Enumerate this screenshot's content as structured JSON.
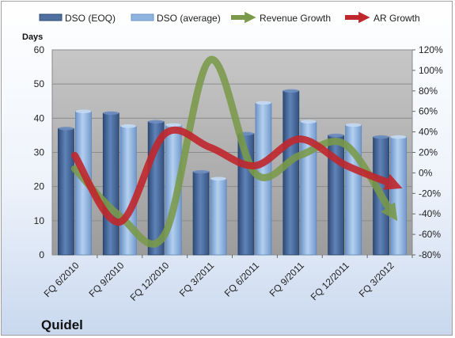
{
  "chart_data": {
    "type": "bar",
    "company": "Quidel",
    "categories": [
      "FQ 6/2010",
      "FQ 9/2010",
      "FQ 12/2010",
      "FQ 3/2011",
      "FQ 6/2011",
      "FQ 9/2011",
      "FQ 12/2011",
      "FQ 3/2012"
    ],
    "y_left": {
      "label": "Days",
      "ylim": [
        0,
        60
      ],
      "ticks": [
        "0",
        "10",
        "20",
        "30",
        "40",
        "50",
        "60"
      ]
    },
    "y_right": {
      "ylim": [
        -80,
        120
      ],
      "ticks": [
        "-80%",
        "-60%",
        "-40%",
        "-20%",
        "0%",
        "20%",
        "40%",
        "60%",
        "80%",
        "100%",
        "120%"
      ]
    },
    "bar_series": [
      {
        "name": "DSO (EOQ)",
        "color": "#4f6fa0",
        "values": [
          37,
          41.5,
          39,
          24.3,
          35.5,
          48,
          35,
          34.5
        ]
      },
      {
        "name": "DSO (average)",
        "color": "#8fb4e0",
        "values": [
          42,
          37.7,
          38,
          22.3,
          44.5,
          39,
          38,
          34.5
        ]
      }
    ],
    "line_series": [
      {
        "name": "Revenue Growth",
        "color": "#7a9a4a",
        "values": [
          4,
          -42,
          -60,
          110,
          0,
          17,
          28,
          -36
        ]
      },
      {
        "name": "AR Growth",
        "color": "#c0272d",
        "values": [
          17,
          -48,
          38,
          25,
          7,
          33,
          8,
          -10
        ]
      }
    ],
    "grid": true,
    "legend_position": "top"
  }
}
